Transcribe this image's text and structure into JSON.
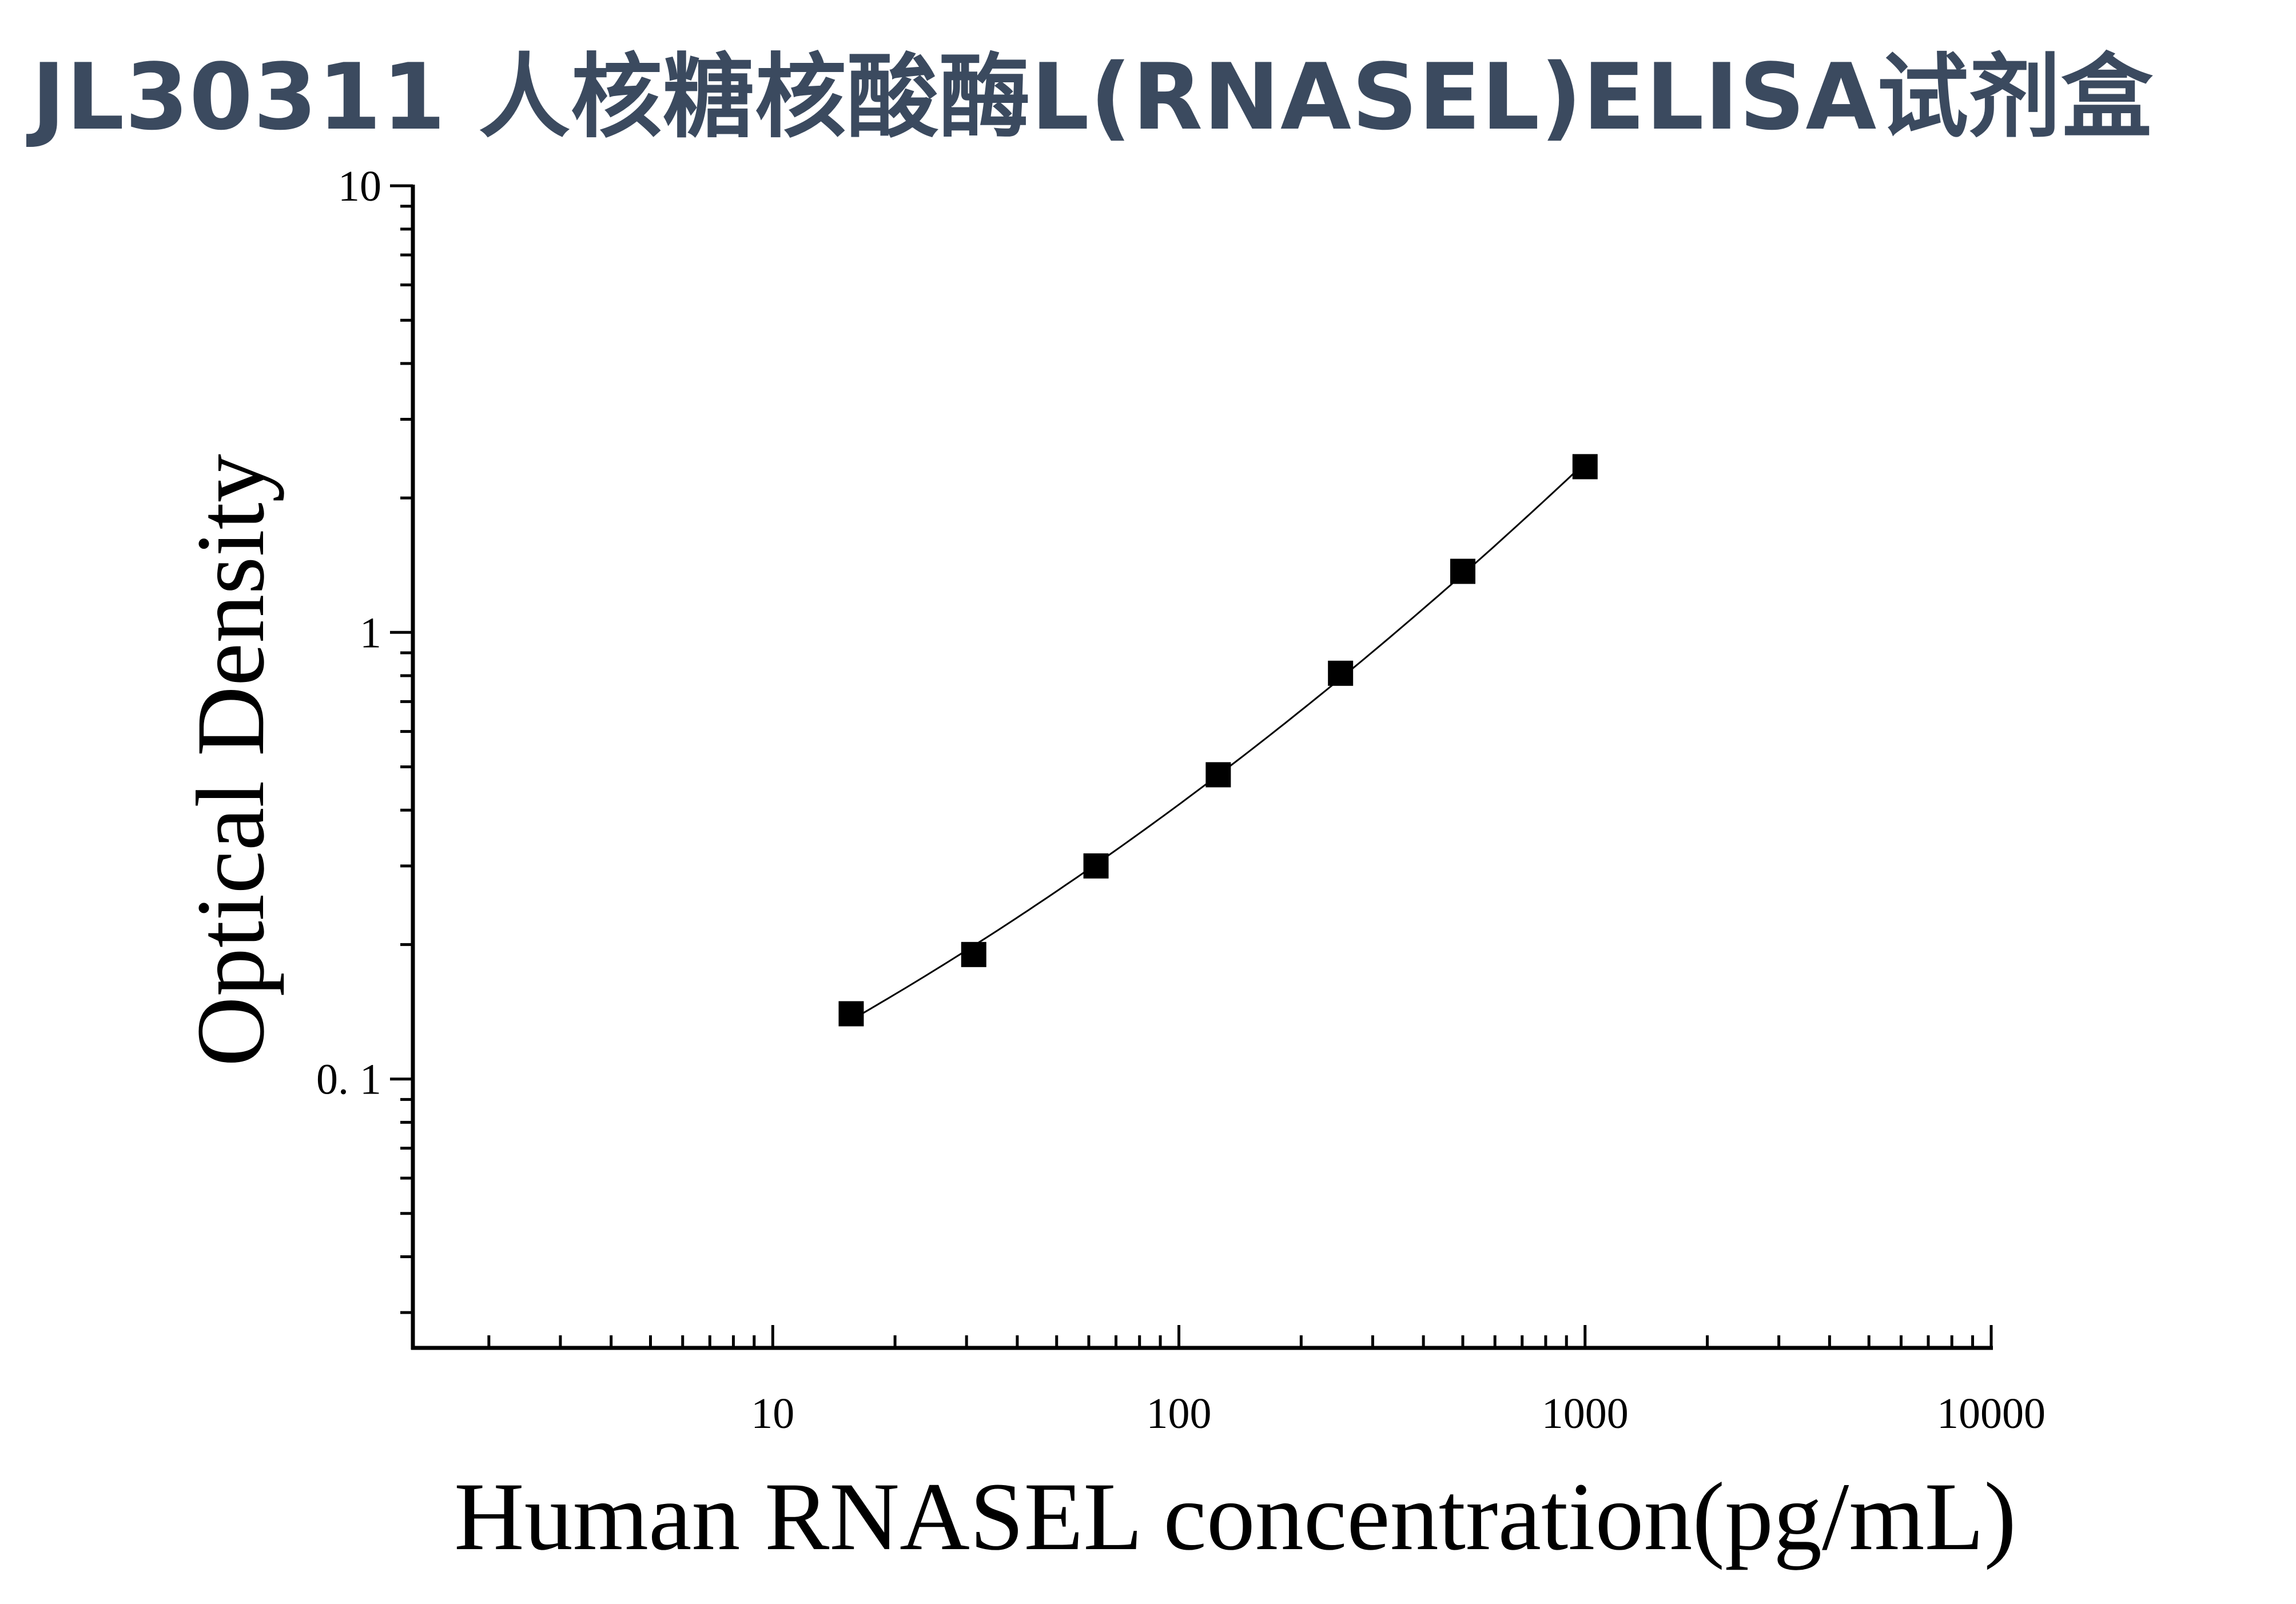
{
  "page": {
    "title": "JL30311 人核糖核酸酶L(RNASEL)ELISA试剂盒"
  },
  "chart_data": {
    "type": "scatter",
    "title": "JL30311 人核糖核酸酶L(RNASEL)ELISA试剂盒",
    "xlabel": "Human RNASEL concentration(pg/mL)",
    "ylabel": "Optical Density",
    "x_scale": "log",
    "y_scale": "log",
    "xlim": [
      1.3,
      10000
    ],
    "ylim": [
      0.025,
      10
    ],
    "x_ticks": [
      10,
      100,
      1000,
      10000
    ],
    "x_tick_labels": [
      "10",
      "100",
      "1000",
      "10000"
    ],
    "y_ticks": [
      0.1,
      1,
      10
    ],
    "y_tick_labels": [
      "0. 1",
      "1",
      "10"
    ],
    "grid": false,
    "marker": "square",
    "fit_line": true,
    "colors": {
      "marker": "#000000",
      "line": "#000000",
      "title": "#3b4a5f"
    },
    "series": [
      {
        "x": [
          15.6,
          31.25,
          62.5,
          125,
          250,
          500,
          1000
        ],
        "y": [
          0.14,
          0.19,
          0.3,
          0.48,
          0.81,
          1.37,
          2.35
        ]
      }
    ]
  }
}
